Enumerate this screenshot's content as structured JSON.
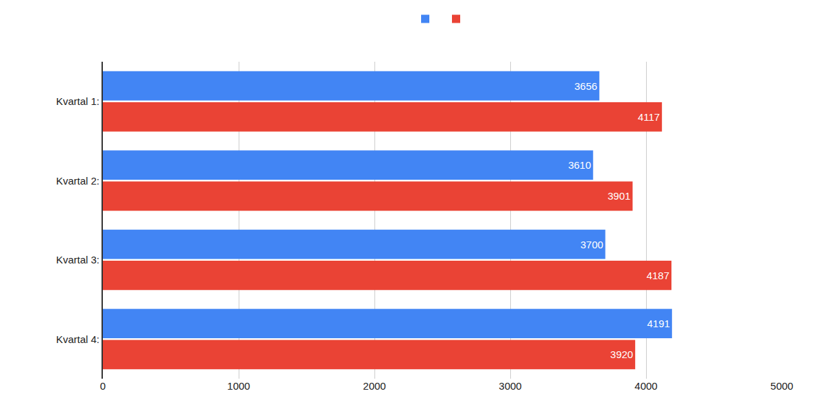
{
  "chart_data": {
    "type": "bar",
    "orientation": "horizontal",
    "categories": [
      "Kvartal 1:",
      "Kvartal 2:",
      "Kvartal 3:",
      "Kvartal 4:"
    ],
    "series": [
      {
        "color": "#4285f4",
        "values": [
          3656,
          3610,
          3700,
          4191
        ]
      },
      {
        "color": "#ea4335",
        "values": [
          4117,
          3901,
          4187,
          3920
        ]
      }
    ],
    "xlim": [
      0,
      5000
    ],
    "xticks": [
      0,
      1000,
      2000,
      3000,
      4000,
      5000
    ],
    "grid": true,
    "legend": "top",
    "data_labels": true
  }
}
